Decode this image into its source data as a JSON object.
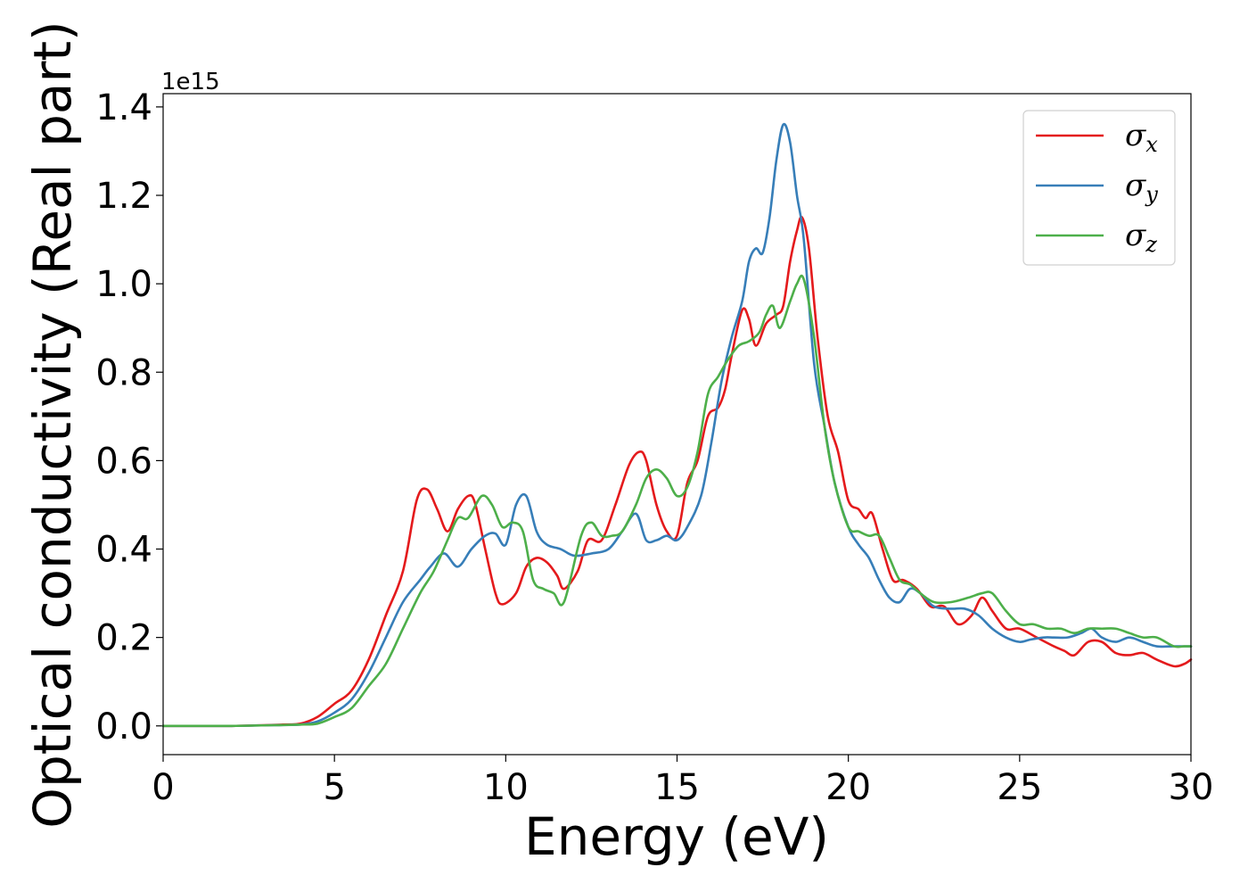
{
  "chart_data": {
    "type": "line",
    "xlabel": "Energy (eV)",
    "ylabel": "Optical conductivity (Real part)",
    "y_offset_label": "1e15",
    "xlim": [
      0,
      30
    ],
    "ylim": [
      -0.065,
      1.43
    ],
    "xticks": [
      0,
      5,
      10,
      15,
      20,
      25,
      30
    ],
    "yticks": [
      0.0,
      0.2,
      0.4,
      0.6,
      0.8,
      1.0,
      1.2,
      1.4
    ],
    "xtick_labels": [
      "0",
      "5",
      "10",
      "15",
      "20",
      "25",
      "30"
    ],
    "ytick_labels": [
      "0.0",
      "0.2",
      "0.4",
      "0.6",
      "0.8",
      "1.0",
      "1.2",
      "1.4"
    ],
    "grid": false,
    "legend_position": "top-right",
    "series": [
      {
        "name": "σx",
        "symbol": "σ",
        "subscript": "x",
        "color": "#e41a1c",
        "x": [
          0,
          2,
          3.5,
          4,
          4.5,
          5,
          5.5,
          6,
          6.5,
          7,
          7.4,
          7.7,
          8,
          8.3,
          8.6,
          8.9,
          9.1,
          9.4,
          9.7,
          9.9,
          10.3,
          10.6,
          10.9,
          11.2,
          11.5,
          11.7,
          12.1,
          12.4,
          12.8,
          13.2,
          13.6,
          13.9,
          14.1,
          14.4,
          14.7,
          15,
          15.3,
          15.6,
          15.9,
          16.2,
          16.4,
          16.6,
          16.9,
          17.1,
          17.3,
          17.6,
          17.9,
          18.1,
          18.3,
          18.5,
          18.65,
          18.85,
          19.1,
          19.4,
          19.7,
          20,
          20.3,
          20.5,
          20.7,
          21,
          21.3,
          21.6,
          22,
          22.4,
          22.8,
          23.2,
          23.6,
          23.9,
          24.2,
          24.6,
          25,
          25.5,
          26,
          26.3,
          26.6,
          27,
          27.4,
          27.8,
          28.2,
          28.6,
          29,
          29.5,
          29.8,
          30
        ],
        "y": [
          0,
          0,
          0.003,
          0.005,
          0.02,
          0.05,
          0.08,
          0.15,
          0.25,
          0.35,
          0.51,
          0.535,
          0.49,
          0.44,
          0.49,
          0.52,
          0.505,
          0.4,
          0.3,
          0.275,
          0.3,
          0.36,
          0.38,
          0.37,
          0.34,
          0.31,
          0.35,
          0.42,
          0.42,
          0.5,
          0.59,
          0.62,
          0.6,
          0.5,
          0.44,
          0.43,
          0.55,
          0.6,
          0.7,
          0.72,
          0.76,
          0.84,
          0.94,
          0.92,
          0.86,
          0.91,
          0.93,
          0.95,
          1.05,
          1.12,
          1.15,
          1.08,
          0.88,
          0.7,
          0.62,
          0.51,
          0.49,
          0.47,
          0.48,
          0.4,
          0.33,
          0.33,
          0.31,
          0.27,
          0.27,
          0.23,
          0.25,
          0.29,
          0.26,
          0.22,
          0.22,
          0.2,
          0.18,
          0.17,
          0.16,
          0.19,
          0.19,
          0.165,
          0.16,
          0.165,
          0.15,
          0.135,
          0.14,
          0.15
        ]
      },
      {
        "name": "σy",
        "symbol": "σ",
        "subscript": "y",
        "color": "#377eb8",
        "x": [
          0,
          2,
          3.5,
          4,
          4.5,
          5,
          5.5,
          6,
          6.5,
          7,
          7.5,
          7.8,
          8.2,
          8.6,
          9,
          9.4,
          9.7,
          10,
          10.3,
          10.6,
          10.9,
          11.2,
          11.6,
          12,
          12.5,
          13,
          13.4,
          13.8,
          14.1,
          14.4,
          14.7,
          15,
          15.3,
          15.7,
          16,
          16.3,
          16.6,
          16.9,
          17.1,
          17.3,
          17.5,
          17.7,
          17.9,
          18.1,
          18.3,
          18.5,
          18.7,
          19,
          19.3,
          19.6,
          20,
          20.3,
          20.6,
          20.9,
          21.2,
          21.5,
          21.8,
          22.1,
          22.5,
          23,
          23.4,
          23.8,
          24.2,
          24.6,
          25,
          25.3,
          25.7,
          26,
          26.4,
          26.8,
          27.1,
          27.4,
          27.8,
          28.2,
          28.6,
          29,
          29.5,
          29.8,
          30
        ],
        "y": [
          0,
          0,
          0.002,
          0.003,
          0.01,
          0.03,
          0.06,
          0.12,
          0.2,
          0.28,
          0.33,
          0.36,
          0.39,
          0.36,
          0.4,
          0.43,
          0.435,
          0.41,
          0.5,
          0.52,
          0.44,
          0.41,
          0.4,
          0.385,
          0.39,
          0.4,
          0.44,
          0.48,
          0.42,
          0.42,
          0.43,
          0.42,
          0.45,
          0.52,
          0.64,
          0.78,
          0.88,
          0.96,
          1.05,
          1.08,
          1.07,
          1.15,
          1.28,
          1.36,
          1.32,
          1.2,
          1.1,
          0.82,
          0.68,
          0.55,
          0.45,
          0.41,
          0.38,
          0.33,
          0.29,
          0.28,
          0.31,
          0.3,
          0.27,
          0.265,
          0.265,
          0.25,
          0.22,
          0.2,
          0.19,
          0.195,
          0.2,
          0.2,
          0.2,
          0.21,
          0.22,
          0.2,
          0.19,
          0.2,
          0.19,
          0.18,
          0.18,
          0.18,
          0.18
        ]
      },
      {
        "name": "σz",
        "symbol": "σ",
        "subscript": "z",
        "color": "#4daf4a",
        "x": [
          0,
          2,
          3.5,
          4,
          4.5,
          5,
          5.5,
          6,
          6.5,
          7,
          7.5,
          7.9,
          8.3,
          8.6,
          8.9,
          9.3,
          9.6,
          9.9,
          10.2,
          10.5,
          10.8,
          11.1,
          11.4,
          11.7,
          12.2,
          12.5,
          12.8,
          13.1,
          13.4,
          13.8,
          14.1,
          14.4,
          14.7,
          15,
          15.3,
          15.6,
          15.9,
          16.2,
          16.5,
          16.8,
          17.1,
          17.4,
          17.6,
          17.8,
          18,
          18.3,
          18.5,
          18.7,
          19,
          19.3,
          19.6,
          20,
          20.3,
          20.6,
          20.9,
          21.2,
          21.5,
          21.8,
          22.1,
          22.5,
          23,
          23.5,
          23.9,
          24.2,
          24.6,
          25,
          25.4,
          25.8,
          26.2,
          26.6,
          27,
          27.4,
          27.8,
          28.2,
          28.6,
          29,
          29.5,
          29.8,
          30
        ],
        "y": [
          0,
          0,
          0.002,
          0.003,
          0.005,
          0.02,
          0.04,
          0.09,
          0.14,
          0.22,
          0.3,
          0.35,
          0.42,
          0.47,
          0.47,
          0.52,
          0.5,
          0.45,
          0.46,
          0.44,
          0.33,
          0.31,
          0.3,
          0.28,
          0.43,
          0.46,
          0.43,
          0.43,
          0.44,
          0.5,
          0.56,
          0.58,
          0.56,
          0.52,
          0.54,
          0.62,
          0.75,
          0.79,
          0.83,
          0.86,
          0.87,
          0.89,
          0.93,
          0.95,
          0.9,
          0.96,
          1.0,
          1.01,
          0.88,
          0.68,
          0.55,
          0.45,
          0.44,
          0.43,
          0.43,
          0.38,
          0.33,
          0.32,
          0.3,
          0.28,
          0.28,
          0.29,
          0.3,
          0.3,
          0.26,
          0.23,
          0.23,
          0.22,
          0.22,
          0.21,
          0.22,
          0.22,
          0.22,
          0.21,
          0.2,
          0.2,
          0.18,
          0.18,
          0.18
        ]
      }
    ]
  }
}
